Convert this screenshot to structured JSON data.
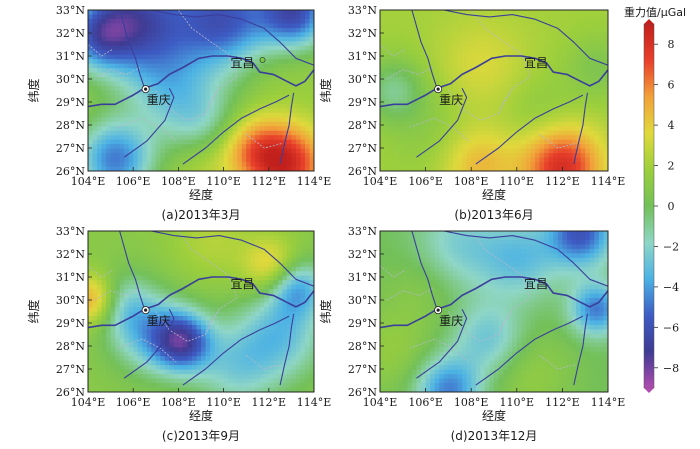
{
  "chart_data": [
    {
      "type": "heatmap",
      "caption": "(a)2013年3月",
      "xlabel": "经度",
      "ylabel": "纬度",
      "xlim": [
        104,
        114
      ],
      "ylim": [
        26,
        33
      ],
      "xticks": [
        "104°E",
        "106°E",
        "108°E",
        "110°E",
        "112°E",
        "114°E"
      ],
      "yticks": [
        "26°N",
        "27°N",
        "28°N",
        "29°N",
        "30°N",
        "31°N",
        "32°N",
        "33°N"
      ],
      "base_value": 1.5,
      "anomalies": [
        {
          "lon": 106.0,
          "lat": 32.6,
          "value": -6.5,
          "radius": 1.6
        },
        {
          "lon": 110.0,
          "lat": 32.6,
          "value": -6,
          "radius": 1.6
        },
        {
          "lon": 113.2,
          "lat": 32.9,
          "value": -6,
          "radius": 1.1
        },
        {
          "lon": 104.4,
          "lat": 31.8,
          "value": -3,
          "radius": 1.0
        },
        {
          "lon": 107.5,
          "lat": 29.7,
          "value": -2,
          "radius": 1.4
        },
        {
          "lon": 105.2,
          "lat": 26.5,
          "value": -5,
          "radius": 1.2
        },
        {
          "lon": 109.0,
          "lat": 28.0,
          "value": -1.5,
          "radius": 1.2
        },
        {
          "lon": 112.8,
          "lat": 26.3,
          "value": 8.5,
          "radius": 1.2
        },
        {
          "lon": 111.3,
          "lat": 27.0,
          "value": 5,
          "radius": 1.0
        },
        {
          "lon": 109.2,
          "lat": 26.4,
          "value": 3,
          "radius": 1.1
        },
        {
          "lon": 112.0,
          "lat": 30.8,
          "value": 2,
          "radius": 1.2
        }
      ],
      "annotations": [
        {
          "text": "重庆",
          "lon": 106.55,
          "lat": 29.56
        },
        {
          "text": "宜昌",
          "lon": 111.28,
          "lat": 30.7
        }
      ]
    },
    {
      "type": "heatmap",
      "caption": "(b)2013年6月",
      "xlabel": "经度",
      "ylabel": "纬度",
      "xlim": [
        104,
        114
      ],
      "ylim": [
        26,
        33
      ],
      "xticks": [
        "104°E",
        "106°E",
        "108°E",
        "110°E",
        "112°E",
        "114°E"
      ],
      "yticks": [
        "26°N",
        "27°N",
        "28°N",
        "29°N",
        "30°N",
        "31°N",
        "32°N",
        "33°N"
      ],
      "base_value": 2,
      "anomalies": [
        {
          "lon": 104.6,
          "lat": 29.5,
          "value": -1,
          "radius": 1.0
        },
        {
          "lon": 108.5,
          "lat": 30.6,
          "value": 3.5,
          "radius": 1.4
        },
        {
          "lon": 106.5,
          "lat": 27.5,
          "value": 1,
          "radius": 1.4
        },
        {
          "lon": 112.0,
          "lat": 26.2,
          "value": 8.5,
          "radius": 1.2
        },
        {
          "lon": 108.3,
          "lat": 26.3,
          "value": 5,
          "radius": 1.2
        },
        {
          "lon": 113.6,
          "lat": 30.5,
          "value": 0.5,
          "radius": 1.0
        },
        {
          "lon": 111.0,
          "lat": 28.5,
          "value": 1,
          "radius": 1.2
        }
      ],
      "annotations": [
        {
          "text": "重庆",
          "lon": 106.55,
          "lat": 29.56
        },
        {
          "text": "宜昌",
          "lon": 111.28,
          "lat": 30.7
        }
      ]
    },
    {
      "type": "heatmap",
      "caption": "(c)2013年9月",
      "xlabel": "经度",
      "ylabel": "纬度",
      "xlim": [
        104,
        114
      ],
      "ylim": [
        26,
        33
      ],
      "xticks": [
        "104°E",
        "106°E",
        "108°E",
        "110°E",
        "112°E",
        "114°E"
      ],
      "yticks": [
        "26°N",
        "27°N",
        "28°N",
        "29°N",
        "30°N",
        "31°N",
        "32°N",
        "33°N"
      ],
      "base_value": 1,
      "anomalies": [
        {
          "lon": 104.2,
          "lat": 30.0,
          "value": 6,
          "radius": 0.8
        },
        {
          "lon": 108.2,
          "lat": 28.2,
          "value": -6,
          "radius": 0.9
        },
        {
          "lon": 106.8,
          "lat": 28.5,
          "value": -3,
          "radius": 1.2
        },
        {
          "lon": 105.5,
          "lat": 29.8,
          "value": -2,
          "radius": 1.0
        },
        {
          "lon": 112.5,
          "lat": 28.5,
          "value": -3,
          "radius": 1.4
        },
        {
          "lon": 113.2,
          "lat": 30.6,
          "value": -4,
          "radius": 0.9
        },
        {
          "lon": 112.2,
          "lat": 31.4,
          "value": 5,
          "radius": 0.9
        },
        {
          "lon": 110.5,
          "lat": 27.0,
          "value": -2,
          "radius": 1.3
        },
        {
          "lon": 109.5,
          "lat": 32.6,
          "value": 2.5,
          "radius": 1.3
        }
      ],
      "annotations": [
        {
          "text": "重庆",
          "lon": 106.55,
          "lat": 29.56
        },
        {
          "text": "宜昌",
          "lon": 111.28,
          "lat": 30.7
        }
      ]
    },
    {
      "type": "heatmap",
      "caption": "(d)2013年12月",
      "xlabel": "经度",
      "ylabel": "纬度",
      "xlim": [
        104,
        114
      ],
      "ylim": [
        26,
        33
      ],
      "xticks": [
        "104°E",
        "106°E",
        "108°E",
        "110°E",
        "112°E",
        "114°E"
      ],
      "yticks": [
        "26°N",
        "27°N",
        "28°N",
        "29°N",
        "30°N",
        "31°N",
        "32°N",
        "33°N"
      ],
      "base_value": 0,
      "anomalies": [
        {
          "lon": 107.5,
          "lat": 32.3,
          "value": -2.5,
          "radius": 1.4
        },
        {
          "lon": 110.2,
          "lat": 31.8,
          "value": -3,
          "radius": 1.2
        },
        {
          "lon": 112.8,
          "lat": 32.9,
          "value": -6,
          "radius": 1.0
        },
        {
          "lon": 113.5,
          "lat": 29.6,
          "value": -5,
          "radius": 0.8
        },
        {
          "lon": 104.5,
          "lat": 27.8,
          "value": 1.5,
          "radius": 1.4
        },
        {
          "lon": 108.8,
          "lat": 28.3,
          "value": -3,
          "radius": 1.1
        },
        {
          "lon": 107.0,
          "lat": 26.1,
          "value": -5,
          "radius": 1.0
        },
        {
          "lon": 110.5,
          "lat": 26.8,
          "value": 1.5,
          "radius": 1.4
        },
        {
          "lon": 106.0,
          "lat": 30.6,
          "value": 1,
          "radius": 1.2
        }
      ],
      "annotations": [
        {
          "text": "重庆",
          "lon": 106.55,
          "lat": 29.56
        },
        {
          "text": "宜昌",
          "lon": 111.28,
          "lat": 30.7
        }
      ]
    }
  ],
  "colorbar": {
    "title": "重力值/μGal",
    "min": -9,
    "max": 9,
    "ticks": [
      "8",
      "6",
      "4",
      "2",
      "0",
      "−2",
      "−4",
      "−6",
      "−8"
    ],
    "tick_values": [
      8,
      6,
      4,
      2,
      0,
      -2,
      -4,
      -6,
      -8
    ],
    "colors": [
      "#b04cb0",
      "#3f3b93",
      "#3d5cc4",
      "#4cb2e4",
      "#8fd6c6",
      "#73c059",
      "#9ccf3c",
      "#e0d93c",
      "#f2a13a",
      "#e8402b",
      "#c2201c"
    ]
  },
  "map_style": {
    "river_color": "#3a3f9c",
    "boundary_color": "#b7b7cf"
  }
}
